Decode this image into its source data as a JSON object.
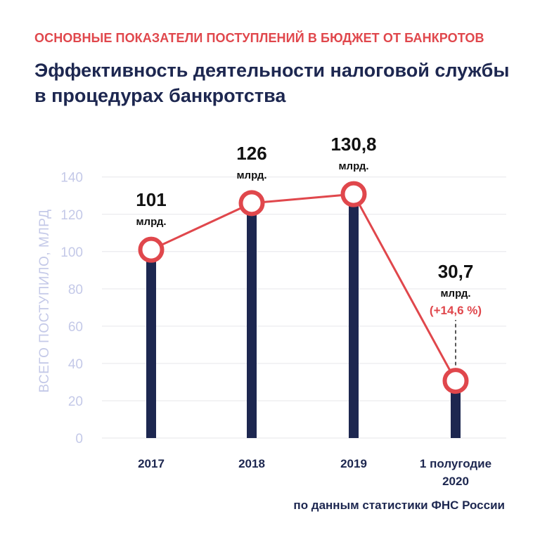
{
  "header": {
    "kicker": "ОСНОВНЫЕ ПОКАЗАТЕЛИ ПОСТУПЛЕНИЙ В БЮДЖЕТ ОТ БАНКРОТОВ",
    "title_line1": "Эффективность деятельности налоговой службы",
    "title_line2": "в процедурах банкротства"
  },
  "footer": {
    "source": "по данным статистики ФНС России"
  },
  "colors": {
    "accent": "#e0474c",
    "navy": "#1d2750",
    "axis": "#c4c9e8",
    "grid": "#e6e6ea"
  },
  "chart_data": {
    "type": "bar",
    "overlay": "line",
    "title": "Эффективность деятельности налоговой службы в процедурах банкротства",
    "ylabel": "ВСЕГО ПОСТУПИЛО, МЛРД",
    "xlabel": "",
    "ylim": [
      0,
      140
    ],
    "yticks": [
      "0",
      "20",
      "40",
      "60",
      "80",
      "100",
      "120",
      "140"
    ],
    "categories": [
      {
        "line1": "2017",
        "line2": ""
      },
      {
        "line1": "2018",
        "line2": ""
      },
      {
        "line1": "2019",
        "line2": ""
      },
      {
        "line1": "1 полугодие",
        "line2": "2020"
      }
    ],
    "values": [
      101,
      126,
      130.8,
      30.7
    ],
    "value_labels": [
      "101",
      "126",
      "130,8",
      "30,7"
    ],
    "unit_label": "млрд.",
    "annotations": [
      "",
      "",
      "",
      "(+14,6 %)"
    ]
  }
}
